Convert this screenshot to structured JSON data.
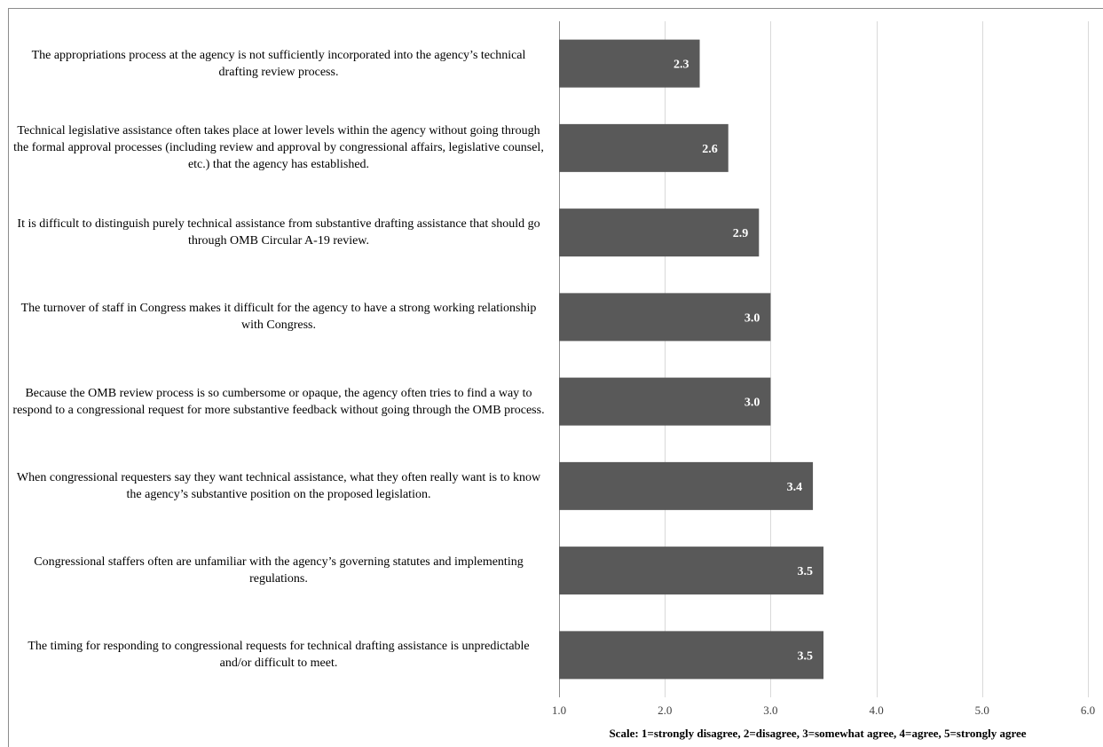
{
  "chart_data": {
    "type": "bar",
    "orientation": "horizontal",
    "categories": [
      "The appropriations process at the agency is not sufficiently incorporated into the agency’s technical drafting review process.",
      "Technical legislative assistance often takes place at lower levels within the agency without going through the formal approval processes (including review and approval by congressional affairs, legislative counsel, etc.) that the agency has established.",
      "It is difficult to distinguish purely technical assistance from substantive drafting assistance that should go through OMB Circular A-19 review.",
      "The turnover of staff in Congress makes it difficult for the agency to have a strong working relationship with Congress.",
      "Because the OMB review process is so cumbersome or opaque, the agency often tries to find a way to respond to a congressional request for more substantive feedback without going through the OMB process.",
      "When congressional requesters say they want technical assistance, what they often really want is to know the agency’s substantive position on the proposed legislation.",
      "Congressional staffers often are unfamiliar with the agency’s governing statutes and implementing regulations.",
      "The timing for responding to congressional requests for technical drafting assistance is unpredictable and/or difficult to meet."
    ],
    "values": [
      2.33,
      2.6,
      2.89,
      3.0,
      3.0,
      3.4,
      3.5,
      3.5
    ],
    "data_labels": [
      "2.3",
      "2.6",
      "2.9",
      "3.0",
      "3.0",
      "3.4",
      "3.5",
      "3.5"
    ],
    "xlim": [
      1.0,
      6.0
    ],
    "x_ticks": [
      "1.0",
      "2.0",
      "3.0",
      "4.0",
      "5.0",
      "6.0"
    ],
    "xlabel": "Scale: 1=strongly disagree, 2=disagree, 3=somewhat agree, 4=agree, 5=strongly agree",
    "grid": true,
    "bar_color": "#595959",
    "grid_color": "#d9d9d9",
    "label_color": "#ffffff"
  }
}
